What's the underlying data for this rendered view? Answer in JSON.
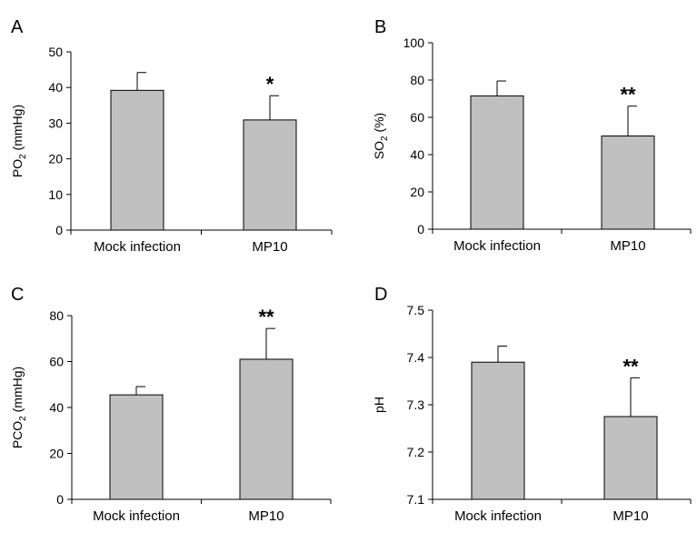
{
  "chart_data": [
    {
      "panel": "A",
      "type": "bar",
      "categories": [
        "Mock infection",
        "MP10"
      ],
      "values": [
        39.2,
        30.9
      ],
      "errors": [
        5.0,
        6.8
      ],
      "annotations": [
        "",
        "*"
      ],
      "ylabel": "PO",
      "ylabel_sub": "2",
      "ylabel_unit": " (mmHg)",
      "ylim": [
        0,
        50
      ],
      "yticks": [
        "0",
        "10",
        "20",
        "30",
        "40",
        "50"
      ],
      "grid": false
    },
    {
      "panel": "B",
      "type": "bar",
      "categories": [
        "Mock infection",
        "MP10"
      ],
      "values": [
        71.5,
        50.0
      ],
      "errors": [
        8.0,
        16.0
      ],
      "annotations": [
        "",
        "**"
      ],
      "ylabel": "SO",
      "ylabel_sub": "2",
      "ylabel_unit": " (%)",
      "ylim": [
        0,
        100
      ],
      "yticks": [
        "0",
        "20",
        "40",
        "60",
        "80",
        "100"
      ],
      "grid": false
    },
    {
      "panel": "C",
      "type": "bar",
      "categories": [
        "Mock infection",
        "MP10"
      ],
      "values": [
        45.5,
        61.0
      ],
      "errors": [
        3.6,
        13.4
      ],
      "annotations": [
        "",
        "**"
      ],
      "ylabel": "PCO",
      "ylabel_sub": "2",
      "ylabel_unit": " (mmHg)",
      "ylim": [
        0,
        80
      ],
      "yticks": [
        "0",
        "20",
        "40",
        "60",
        "80"
      ],
      "grid": false
    },
    {
      "panel": "D",
      "type": "bar",
      "categories": [
        "Mock infection",
        "MP10"
      ],
      "values": [
        7.39,
        7.275
      ],
      "errors": [
        0.034,
        0.082
      ],
      "annotations": [
        "",
        "**"
      ],
      "ylabel": "pH",
      "ylabel_sub": "",
      "ylabel_unit": "",
      "ylim": [
        7.1,
        7.5
      ],
      "yticks": [
        "7.1",
        "7.2",
        "7.3",
        "7.4",
        "7.5"
      ],
      "grid": false
    }
  ]
}
